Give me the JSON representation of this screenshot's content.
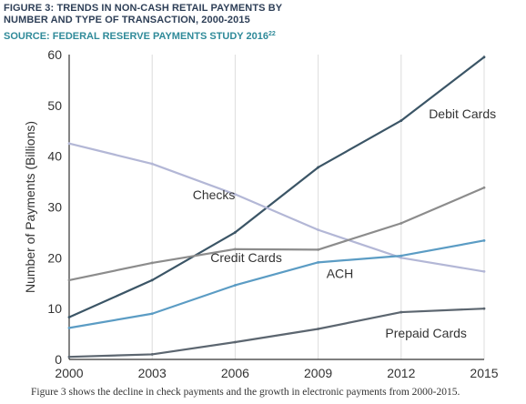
{
  "header": {
    "title_line1": "FIGURE 3: TRENDS IN NON-CASH RETAIL PAYMENTS BY",
    "title_line2": "NUMBER AND TYPE OF TRANSACTION, 2000-2015",
    "source": "SOURCE: FEDERAL RESERVE PAYMENTS STUDY 2016",
    "source_note": "22"
  },
  "caption": "Figure 3 shows the decline in check payments and the growth in electronic payments from 2000-2015.",
  "chart_data": {
    "type": "line",
    "title": "FIGURE 3: TRENDS IN NON-CASH RETAIL PAYMENTS BY NUMBER AND TYPE OF TRANSACTION, 2000-2015",
    "xlabel": "",
    "ylabel": "Number of Payments (Billions)",
    "x": [
      2000,
      2003,
      2006,
      2009,
      2012,
      2015
    ],
    "xlim": [
      2000,
      2015
    ],
    "ylim": [
      0,
      60
    ],
    "yticks": [
      0,
      10,
      20,
      30,
      40,
      50,
      60
    ],
    "grid": "vertical",
    "legend": "inline labels",
    "series": [
      {
        "name": "Debit Cards",
        "color": "#3b5566",
        "values": [
          8.3,
          15.6,
          25.0,
          37.8,
          47.0,
          59.5
        ]
      },
      {
        "name": "Checks",
        "color": "#b3b7d6",
        "values": [
          42.5,
          38.5,
          32.5,
          25.5,
          20.0,
          17.3
        ]
      },
      {
        "name": "Credit Cards",
        "color": "#8c8c8c",
        "values": [
          15.6,
          19.0,
          21.7,
          21.6,
          26.8,
          33.8
        ]
      },
      {
        "name": "ACH",
        "color": "#5b9cc4",
        "values": [
          6.2,
          9.0,
          14.6,
          19.1,
          20.4,
          23.4
        ]
      },
      {
        "name": "Prepaid Cards",
        "color": "#5c6670",
        "values": [
          0.5,
          1.0,
          3.4,
          6.0,
          9.3,
          10.0
        ]
      }
    ]
  }
}
